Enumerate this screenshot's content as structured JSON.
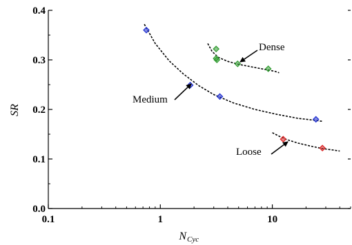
{
  "chart_data": {
    "type": "scatter",
    "title": "",
    "xlabel": "N",
    "xlabel_sub": "Cyc",
    "ylabel": "SR",
    "x_scale": "log",
    "xlim": [
      0.1,
      50
    ],
    "ylim": [
      0.0,
      0.4
    ],
    "x_ticks": [
      "0.1",
      "1",
      "10"
    ],
    "x_tick_values": [
      0.1,
      1,
      10
    ],
    "y_ticks": [
      "0.0",
      "0.1",
      "0.2",
      "0.3",
      "0.4"
    ],
    "y_tick_values": [
      0.0,
      0.1,
      0.2,
      0.3,
      0.4
    ],
    "grid": false,
    "series": [
      {
        "name": "Medium",
        "color": "#1f2fd0",
        "x": [
          0.75,
          1.85,
          3.4,
          24.5
        ],
        "y": [
          0.36,
          0.249,
          0.226,
          0.18
        ],
        "fit_x": [
          0.72,
          0.9,
          1.2,
          1.6,
          2.2,
          3.0,
          4.5,
          7.0,
          11.0,
          17.0,
          24.0,
          28.0
        ],
        "fit_y": [
          0.372,
          0.333,
          0.298,
          0.272,
          0.248,
          0.23,
          0.213,
          0.2,
          0.19,
          0.182,
          0.178,
          0.176
        ]
      },
      {
        "name": "Dense",
        "color": "#2f9a2f",
        "x": [
          3.15,
          3.15,
          3.2,
          4.9,
          9.2
        ],
        "y": [
          0.322,
          0.303,
          0.3,
          0.292,
          0.282
        ],
        "fit_x": [
          2.65,
          2.9,
          3.3,
          4.0,
          5.0,
          6.5,
          8.5,
          10.5,
          11.5
        ],
        "fit_y": [
          0.333,
          0.317,
          0.305,
          0.297,
          0.291,
          0.286,
          0.281,
          0.277,
          0.274
        ]
      },
      {
        "name": "Loose",
        "color": "#d82020",
        "x": [
          12.5,
          28.0
        ],
        "y": [
          0.14,
          0.122
        ],
        "fit_x": [
          10.0,
          11.5,
          13.5,
          17.0,
          22.0,
          28.0,
          35.0,
          40.0
        ],
        "fit_y": [
          0.153,
          0.146,
          0.139,
          0.132,
          0.126,
          0.121,
          0.118,
          0.116
        ]
      }
    ],
    "annotations": [
      "Dense",
      "Medium",
      "Loose"
    ]
  }
}
